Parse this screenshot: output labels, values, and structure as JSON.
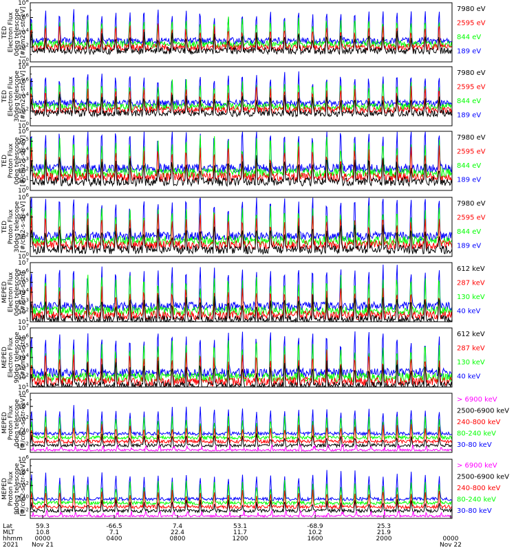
{
  "colors": {
    "blue": "#0000ff",
    "red": "#ff0000",
    "green": "#00ff00",
    "black": "#000000",
    "magenta": "#ff00ff"
  },
  "chart_data": [
    {
      "type": "line",
      "ylabel": [
        "TED",
        "Electron Flux",
        "0deg telescope",
        "[#/cm2-s-str-eV]"
      ],
      "yscale": "log",
      "ylim_exp": [
        0,
        8
      ],
      "ytick_labels": [
        "10^0",
        "10^2",
        "10^4",
        "10^6",
        "10^8"
      ],
      "baseline_exp": 2.4,
      "series": [
        {
          "name": "7980 eV",
          "color": "#000000"
        },
        {
          "name": "2595 eV",
          "color": "#ff0000"
        },
        {
          "name": "844 eV",
          "color": "#00ff00"
        },
        {
          "name": "189 eV",
          "color": "#0000ff"
        }
      ]
    },
    {
      "type": "line",
      "ylabel": [
        "TED",
        "Electron Flux",
        "30deg telescope",
        "[#/cm2-s-str-eV]"
      ],
      "yscale": "log",
      "ylim_exp": [
        0,
        8
      ],
      "ytick_labels": [
        "10^0",
        "10^2",
        "10^4",
        "10^6",
        "10^8"
      ],
      "baseline_exp": 2.6,
      "series": [
        {
          "name": "7980 eV",
          "color": "#000000"
        },
        {
          "name": "2595 eV",
          "color": "#ff0000"
        },
        {
          "name": "844 eV",
          "color": "#00ff00"
        },
        {
          "name": "189 eV",
          "color": "#0000ff"
        }
      ]
    },
    {
      "type": "line",
      "ylabel": [
        "TED",
        "Proton Flux",
        "0deg telescope",
        "[#/cm2-s-str-eV]"
      ],
      "yscale": "log",
      "ylim_exp": [
        0,
        6
      ],
      "ytick_labels": [
        "10^0",
        "10^1",
        "10^2",
        "10^3",
        "10^4",
        "10^5",
        "10^6"
      ],
      "baseline_exp": 1.8,
      "series": [
        {
          "name": "7980 eV",
          "color": "#000000"
        },
        {
          "name": "2595 eV",
          "color": "#ff0000"
        },
        {
          "name": "844 eV",
          "color": "#00ff00"
        },
        {
          "name": "189 eV",
          "color": "#0000ff"
        }
      ]
    },
    {
      "type": "line",
      "ylabel": [
        "TED",
        "Proton Flux",
        "30deg telescope",
        "[#/cm2-s-str-eV]"
      ],
      "yscale": "log",
      "ylim_exp": [
        0,
        6
      ],
      "ytick_labels": [
        "10^0",
        "10^2",
        "10^4",
        "10^6"
      ],
      "baseline_exp": 1.6,
      "series": [
        {
          "name": "7980 eV",
          "color": "#000000"
        },
        {
          "name": "2595 eV",
          "color": "#ff0000"
        },
        {
          "name": "844 eV",
          "color": "#00ff00"
        },
        {
          "name": "189 eV",
          "color": "#0000ff"
        }
      ]
    },
    {
      "type": "line",
      "ylabel": [
        "MEPED",
        "Electron Flux",
        "0deg telescope",
        "[#/cm2-s-str]"
      ],
      "yscale": "log",
      "ylim_exp": [
        1,
        7
      ],
      "ytick_labels": [
        "10^1",
        "10^2",
        "10^3",
        "10^4",
        "10^5",
        "10^6",
        "10^7"
      ],
      "baseline_exp": 2.1,
      "series": [
        {
          "name": "612 keV",
          "color": "#000000"
        },
        {
          "name": "287 keV",
          "color": "#ff0000"
        },
        {
          "name": "130 keV",
          "color": "#00ff00"
        },
        {
          "name": "40 keV",
          "color": "#0000ff"
        }
      ]
    },
    {
      "type": "line",
      "ylabel": [
        "MEPED",
        "Electron Flux",
        "90deg telescope",
        "[#/cm2-s-str]"
      ],
      "yscale": "log",
      "ylim_exp": [
        1,
        7
      ],
      "ytick_labels": [
        "10^1",
        "10^2",
        "10^3",
        "10^4",
        "10^5",
        "10^6",
        "10^7"
      ],
      "baseline_exp": 2.0,
      "series": [
        {
          "name": "612 keV",
          "color": "#000000"
        },
        {
          "name": "287 keV",
          "color": "#ff0000"
        },
        {
          "name": "130 keV",
          "color": "#00ff00"
        },
        {
          "name": "40 keV",
          "color": "#0000ff"
        }
      ]
    },
    {
      "type": "line",
      "ylabel": [
        "MEPED",
        "Proton Flux",
        "0deg telescope",
        "[#/cm2-s-str-keV]"
      ],
      "yscale": "log",
      "ylim_exp": [
        -3,
        6
      ],
      "ytick_labels": [
        "10^-2",
        "10^0",
        "10^2",
        "10^4",
        "10^6"
      ],
      "baseline_exp": 0.2,
      "series": [
        {
          "name": "> 6900 keV",
          "color": "#ff00ff"
        },
        {
          "name": "2500-6900 keV",
          "color": "#000000"
        },
        {
          "name": "240-800 keV",
          "color": "#ff0000"
        },
        {
          "name": "80-240 keV",
          "color": "#00ff00"
        },
        {
          "name": "30-80 keV",
          "color": "#0000ff"
        }
      ]
    },
    {
      "type": "line",
      "ylabel": [
        "MEPED",
        "Proton Flux",
        "90deg telescope",
        "[#/cm2-s-str-keV]"
      ],
      "yscale": "log",
      "ylim_exp": [
        -3,
        6
      ],
      "ytick_labels": [
        "10^-2",
        "10^0",
        "10^2",
        "10^4",
        "10^6"
      ],
      "baseline_exp": 0.3,
      "series": [
        {
          "name": "> 6900 keV",
          "color": "#ff00ff"
        },
        {
          "name": "2500-6900 keV",
          "color": "#000000"
        },
        {
          "name": "240-800 keV",
          "color": "#ff0000"
        },
        {
          "name": "80-240 keV",
          "color": "#00ff00"
        },
        {
          "name": "30-80 keV",
          "color": "#0000ff"
        }
      ]
    }
  ],
  "footer": {
    "row_labels": [
      "Lat",
      "MLT",
      "hhmm",
      "2021"
    ],
    "columns": [
      {
        "lat": "59.3",
        "mlt": "10.8",
        "hhmm": "0000",
        "date": "Nov 21"
      },
      {
        "lat": "-66.5",
        "mlt": "7.1",
        "hhmm": "0400",
        "date": ""
      },
      {
        "lat": "7.4",
        "mlt": "22.4",
        "hhmm": "0800",
        "date": ""
      },
      {
        "lat": "53.1",
        "mlt": "11.7",
        "hhmm": "1200",
        "date": ""
      },
      {
        "lat": "-68.9",
        "mlt": "10.2",
        "hhmm": "1600",
        "date": ""
      },
      {
        "lat": "25.3",
        "mlt": "21.9",
        "hhmm": "2000",
        "date": ""
      },
      {
        "lat": "",
        "mlt": "",
        "hhmm": "0000",
        "date": "Nov 22"
      }
    ]
  }
}
